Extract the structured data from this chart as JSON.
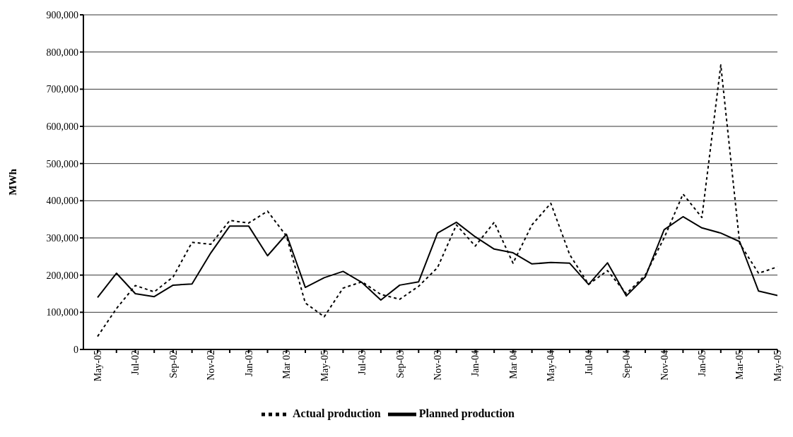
{
  "chart_data": {
    "type": "line",
    "ylabel": "MWh",
    "categories": [
      "May-05",
      null,
      "Jul-02",
      null,
      "Sep-02",
      null,
      "Nov-02",
      null,
      "Jan-03",
      null,
      "Mar 03",
      null,
      "May-05",
      null,
      "Jul-03",
      null,
      "Sep-03",
      null,
      "Nov-03",
      null,
      "Jan-04",
      null,
      "Mar 04",
      null,
      "May-04",
      null,
      "Jul-04",
      null,
      "Sep-04",
      null,
      "Nov-04",
      null,
      "Jan-05",
      null,
      "Mar-05",
      null,
      "May-05"
    ],
    "series": [
      {
        "name": "Planned production",
        "color": "#000000",
        "line_style": "solid",
        "values": [
          140000,
          205000,
          150000,
          142000,
          173000,
          176000,
          260000,
          332000,
          332000,
          252000,
          310000,
          167000,
          193000,
          210000,
          180000,
          133000,
          173000,
          182000,
          313000,
          342000,
          303000,
          270000,
          260000,
          230000,
          234000,
          232000,
          175000,
          233000,
          144000,
          195000,
          322000,
          357000,
          327000,
          313000,
          290000,
          157000,
          145000
        ]
      },
      {
        "name": "Actual production",
        "color": "#000000",
        "line_style": "dashed",
        "values": [
          35000,
          110000,
          172000,
          155000,
          195000,
          288000,
          283000,
          347000,
          340000,
          372000,
          305000,
          125000,
          88000,
          165000,
          182000,
          148000,
          135000,
          170000,
          220000,
          335000,
          278000,
          342000,
          232000,
          335000,
          393000,
          255000,
          175000,
          212000,
          150000,
          200000,
          300000,
          418000,
          355000,
          765000,
          285000,
          205000,
          222000
        ]
      }
    ],
    "ylim": [
      0,
      900000
    ],
    "yticks": [
      {
        "value": 0,
        "label": "0"
      },
      {
        "value": 100000,
        "label": "100,000"
      },
      {
        "value": 200000,
        "label": "200,000"
      },
      {
        "value": 300000,
        "label": "300,000"
      },
      {
        "value": 400000,
        "label": "400,000"
      },
      {
        "value": 500000,
        "label": "500,000"
      },
      {
        "value": 600000,
        "label": "600,000"
      },
      {
        "value": 700000,
        "label": "700,000"
      },
      {
        "value": 800000,
        "label": "800,000"
      },
      {
        "value": 900000,
        "label": "900,000"
      }
    ],
    "grid": "y",
    "legend": "bottom",
    "marker": "none"
  }
}
